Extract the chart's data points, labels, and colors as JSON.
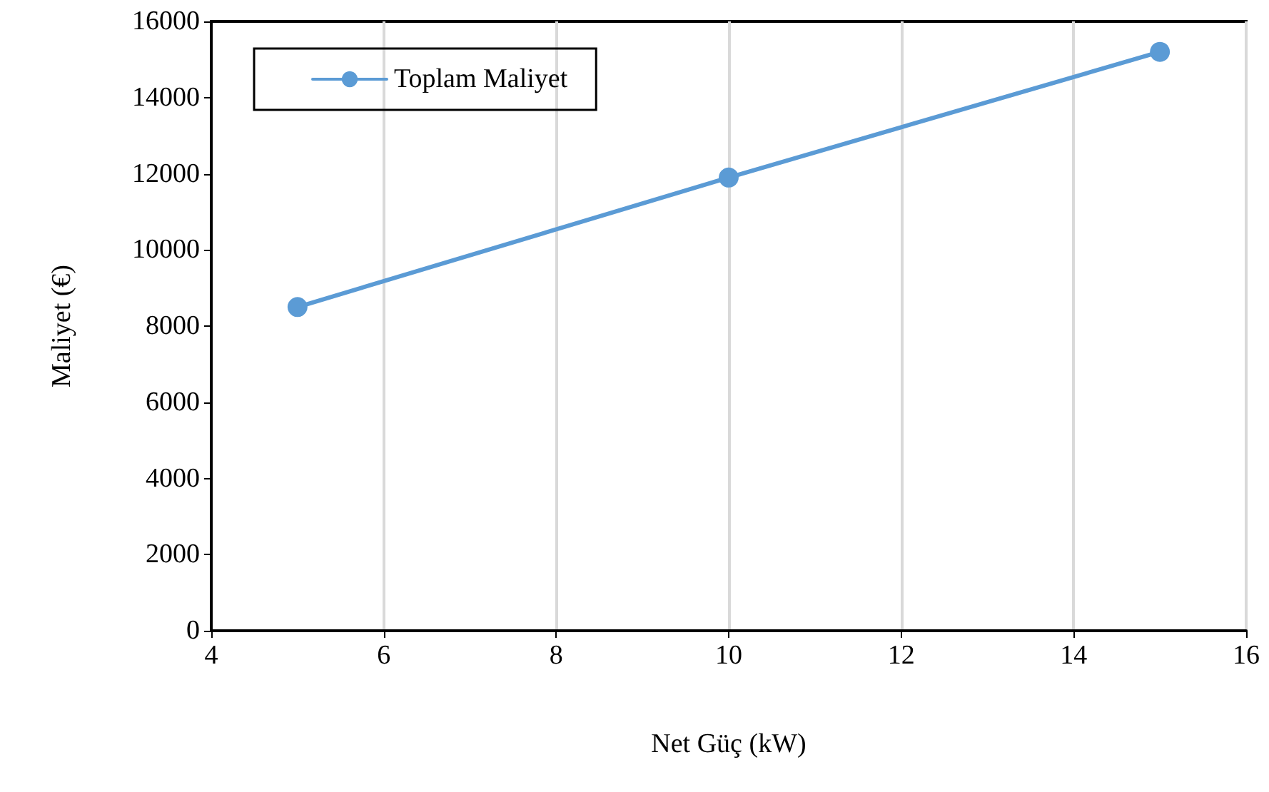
{
  "chart_data": {
    "type": "line",
    "xlabel": "Net Güç (kW)",
    "ylabel": "Maliyet (€)",
    "x": [
      5,
      10,
      15
    ],
    "series": [
      {
        "name": "Toplam Maliyet",
        "color": "#5b9bd5",
        "values": [
          8500,
          11900,
          15200
        ]
      }
    ],
    "xlim": [
      4,
      16
    ],
    "xticks": [
      4,
      6,
      8,
      10,
      12,
      14,
      16
    ],
    "ylim": [
      0,
      16000
    ],
    "yticks": [
      0,
      2000,
      4000,
      6000,
      8000,
      10000,
      12000,
      14000,
      16000
    ],
    "grid": "x",
    "legend": "top left",
    "marker": "circle",
    "line_style": "solid"
  }
}
